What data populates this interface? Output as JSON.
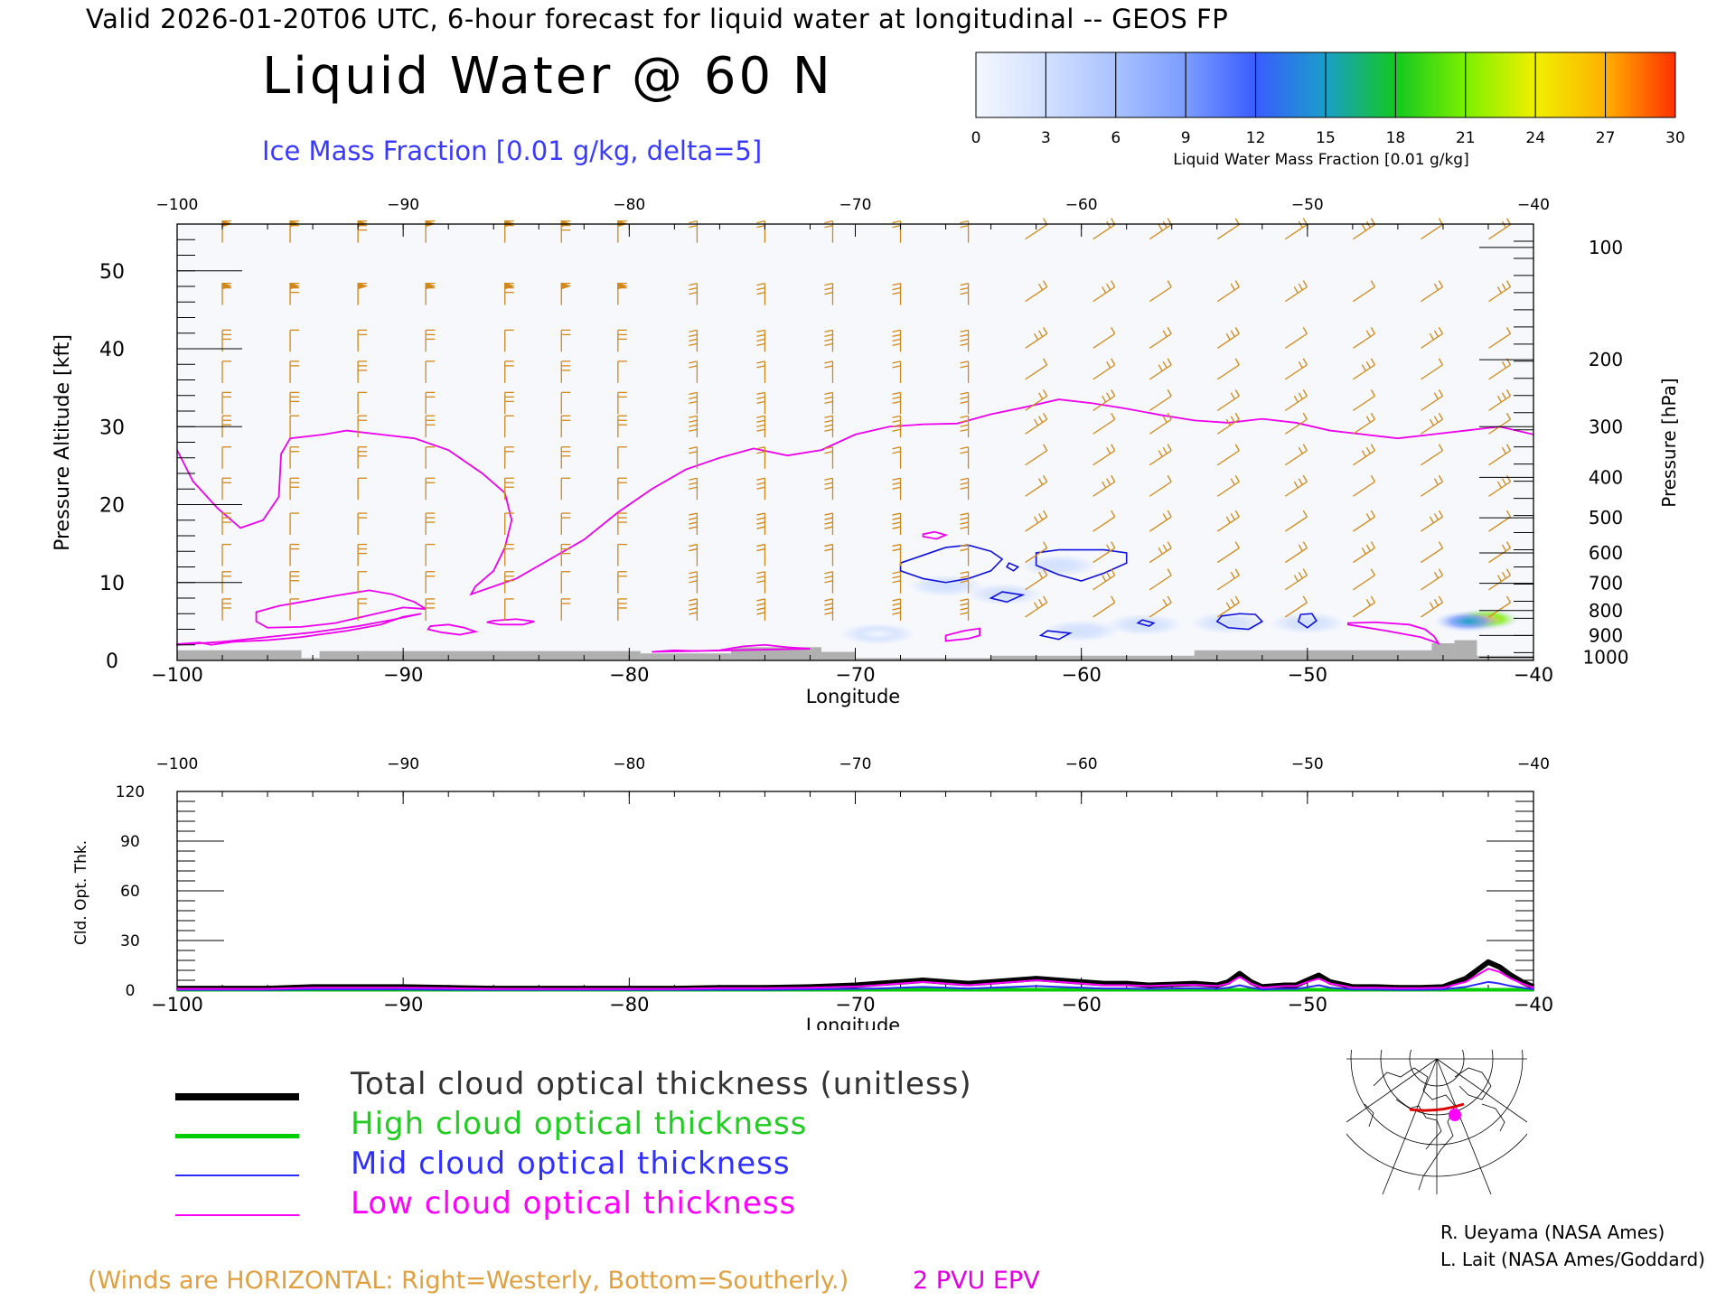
{
  "header": {
    "valid_line": "Valid 2026-01-20T06 UTC, 6-hour forecast for liquid water at longitudinal -- GEOS FP",
    "title": "Liquid Water @ 60 N",
    "subtitle": "Ice Mass Fraction [0.01 g/kg, delta=5]"
  },
  "colorbar": {
    "ticks": [
      "0",
      "3",
      "6",
      "9",
      "12",
      "15",
      "18",
      "21",
      "24",
      "27",
      "30"
    ],
    "label": "Liquid Water Mass Fraction [0.01 g/kg]",
    "colors": [
      "#f4f7ff",
      "#d2e0ff",
      "#a9c2ff",
      "#7b9cff",
      "#3a5cff",
      "#1a9ec8",
      "#12c820",
      "#7cf000",
      "#f0f000",
      "#ffb000",
      "#ff3000"
    ]
  },
  "chart_data": [
    {
      "type": "heatmap",
      "title": "Liquid Water @ 60 N",
      "xlabel": "Longitude",
      "ylabel": "Pressure Altitude [kft]",
      "y2label": "Pressure [hPa]",
      "xlim": [
        -100,
        -40
      ],
      "ylim": [
        0,
        56
      ],
      "x_ticks": [
        "-100",
        "-90",
        "-80",
        "-70",
        "-60",
        "-50",
        "-40"
      ],
      "y_ticks": [
        "0",
        "10",
        "20",
        "30",
        "40",
        "50"
      ],
      "pressure_ticks": [
        "100",
        "200",
        "300",
        "400",
        "500",
        "600",
        "700",
        "800",
        "900",
        "1000"
      ],
      "pressure_tick_kft": [
        53,
        38.6,
        30,
        23.5,
        18.3,
        13.8,
        9.9,
        6.4,
        3.2,
        0.4
      ],
      "ice_contours": [
        {
          "x": [
            -68,
            -67,
            -66,
            -65,
            -64,
            -63.5,
            -64,
            -65,
            -66,
            -67,
            -68
          ],
          "y": [
            12.5,
            13.5,
            14.5,
            14.8,
            14,
            13,
            11.5,
            10.5,
            10,
            10.5,
            11.5
          ]
        },
        {
          "x": [
            -62,
            -61,
            -60,
            -59,
            -58,
            -58,
            -59,
            -60,
            -61,
            -62
          ],
          "y": [
            13.8,
            14.2,
            14.2,
            14.2,
            13.8,
            12.5,
            11.2,
            10.2,
            11,
            12.2
          ]
        },
        {
          "x": [
            -53.8,
            -53,
            -52.3,
            -52,
            -52.6,
            -53.5,
            -54
          ],
          "y": [
            5.7,
            6,
            5.9,
            5,
            4,
            4.2,
            5
          ]
        },
        {
          "x": [
            -50.3,
            -49.8,
            -49.6,
            -50,
            -50.4
          ],
          "y": [
            5.9,
            6,
            5.1,
            4.2,
            5
          ]
        },
        {
          "x": [
            -63.2,
            -62.8,
            -63,
            -63.3
          ],
          "y": [
            12.5,
            12,
            11.5,
            12
          ]
        },
        {
          "x": [
            -63.5,
            -62.6,
            -63.3,
            -64
          ],
          "y": [
            8.8,
            8.4,
            7.5,
            8
          ]
        },
        {
          "x": [
            -61.5,
            -60.5,
            -61,
            -61.8
          ],
          "y": [
            3.8,
            3.5,
            2.7,
            3.2
          ]
        },
        {
          "x": [
            -57.3,
            -56.8,
            -57,
            -57.5
          ],
          "y": [
            5.2,
            4.8,
            4.4,
            4.8
          ]
        }
      ],
      "epv_2pvu": [
        {
          "x": [
            -100,
            -99.3,
            -98.2,
            -97.2,
            -96.2,
            -95.5,
            -95.4,
            -95,
            -93.5,
            -92.5,
            -91,
            -89.5,
            -88,
            -86.5,
            -85.5,
            -85.2,
            -85.5,
            -86,
            -86.8,
            -87,
            -86.5,
            -85,
            -83.5,
            -82,
            -80.5,
            -79,
            -77.5,
            -76,
            -74.5,
            -73,
            -71.5,
            -70,
            -68.5,
            -67,
            -65.5,
            -64,
            -62.5,
            -61,
            -59.5,
            -58,
            -56.5,
            -55,
            -53.5,
            -52,
            -50.5,
            -49,
            -47.5,
            -46,
            -44.5,
            -43,
            -41.5,
            -40
          ],
          "y": [
            27,
            23,
            19.5,
            17,
            18,
            21,
            26.5,
            28.5,
            29,
            29.5,
            29,
            28.5,
            27,
            24,
            21.5,
            18,
            14.5,
            11.5,
            9.5,
            8.5,
            9,
            10.5,
            13,
            15.5,
            19,
            22,
            24.5,
            26,
            27.2,
            26.3,
            27,
            29,
            30,
            30.3,
            30.4,
            31.6,
            32.5,
            33.5,
            33,
            32.3,
            31.5,
            30.8,
            30.5,
            31,
            30.5,
            29.5,
            29,
            28.5,
            29,
            29.5,
            30,
            29
          ]
        },
        {
          "x": [
            -96.5,
            -95.5,
            -94.5,
            -93,
            -91.5,
            -90.5,
            -89.5,
            -89,
            -90,
            -91.5,
            -93,
            -94.5,
            -96,
            -96.5
          ],
          "y": [
            6.2,
            7,
            7.5,
            8.3,
            9,
            8.5,
            7.5,
            6.6,
            6.8,
            5.8,
            4.8,
            4.3,
            4.2,
            5
          ]
        },
        {
          "x": [
            -100,
            -99,
            -98.5,
            -97.5,
            -96,
            -94.5,
            -92.5,
            -91,
            -90,
            -89.2,
            -90.5,
            -92,
            -94,
            -96,
            -98,
            -100
          ],
          "y": [
            2.1,
            2.3,
            2,
            2.4,
            2.6,
            3,
            3.8,
            4.6,
            5.6,
            6,
            5.2,
            4.4,
            3.6,
            3,
            2.4,
            2
          ]
        },
        {
          "x": [
            -88.8,
            -88,
            -87.3,
            -86.8,
            -87.5,
            -88.3,
            -88.9
          ],
          "y": [
            4.4,
            4.6,
            4.2,
            3.7,
            3.3,
            3.6,
            4
          ]
        },
        {
          "x": [
            -86,
            -85,
            -84.2,
            -84.7,
            -85.7,
            -86.3
          ],
          "y": [
            5.1,
            5.3,
            5,
            4.6,
            4.6,
            4.9
          ]
        },
        {
          "x": [
            -79,
            -78,
            -77,
            -76,
            -75,
            -74,
            -73,
            -72
          ],
          "y": [
            1.1,
            1.3,
            1.2,
            1.3,
            1.8,
            2,
            1.7,
            1.5
          ]
        },
        {
          "x": [
            -66,
            -65,
            -64.5,
            -64.5,
            -65.2,
            -66
          ],
          "y": [
            2.5,
            2.8,
            3.2,
            4.1,
            3.8,
            3.2
          ]
        },
        {
          "x": [
            -67,
            -66.5,
            -66,
            -66.4,
            -67
          ],
          "y": [
            16.2,
            16.5,
            16.1,
            15.6,
            15.9
          ]
        },
        {
          "x": [
            -48.2,
            -47,
            -45.5,
            -44.8,
            -44.4,
            -44.2,
            -45,
            -46.5,
            -48.2
          ],
          "y": [
            4.8,
            4.9,
            4.6,
            4,
            3.1,
            2.2,
            3,
            3.8,
            4.6
          ]
        }
      ],
      "liquid_blobs": [
        {
          "lon": -42.1,
          "kft": 5.3,
          "value": 28
        },
        {
          "lon": -42.9,
          "kft": 5.0,
          "value": 15
        },
        {
          "lon": -53.5,
          "kft": 4.8,
          "value": 3
        },
        {
          "lon": -57.2,
          "kft": 4.6,
          "value": 2
        },
        {
          "lon": -50,
          "kft": 4.8,
          "value": 2
        },
        {
          "lon": -60,
          "kft": 3.8,
          "value": 2
        },
        {
          "lon": -66,
          "kft": 9.6,
          "value": 2
        },
        {
          "lon": -63.4,
          "kft": 8.5,
          "value": 2
        },
        {
          "lon": -61,
          "kft": 12.2,
          "value": 2
        },
        {
          "lon": -69,
          "kft": 3.4,
          "value": 1
        }
      ],
      "terrain": [
        {
          "x0": -100,
          "x1": -94.5,
          "kft": 1.3
        },
        {
          "x0": -94.5,
          "x1": -93.7,
          "kft": 0.3
        },
        {
          "x0": -93.7,
          "x1": -79.5,
          "kft": 1.2
        },
        {
          "x0": -79.5,
          "x1": -75.5,
          "kft": 0.9
        },
        {
          "x0": -75.5,
          "x1": -71.5,
          "kft": 1.7
        },
        {
          "x0": -71.5,
          "x1": -70,
          "kft": 1.1
        },
        {
          "x0": -70,
          "x1": -64,
          "kft": 0.3
        },
        {
          "x0": -64,
          "x1": -55,
          "kft": 0.6
        },
        {
          "x0": -55,
          "x1": -44.5,
          "kft": 1.3
        },
        {
          "x0": -44.5,
          "x1": -43.5,
          "kft": 2.2
        },
        {
          "x0": -43.5,
          "x1": -42.5,
          "kft": 2.6
        },
        {
          "x0": -42.5,
          "x1": -40,
          "kft": 0.6
        }
      ],
      "wind_columns_lon": [
        -98,
        -95,
        -92,
        -89,
        -85.5,
        -83,
        -80.5,
        -77,
        -74,
        -71,
        -68,
        -65,
        -62,
        -59,
        -56.5,
        -53.5,
        -50.5,
        -47.5,
        -44.5,
        -41.5
      ],
      "wind_levels_kft": [
        55,
        47,
        41,
        37,
        33,
        30,
        26,
        22,
        17.5,
        13.5,
        10,
        6.5
      ]
    },
    {
      "type": "line",
      "xlabel": "Longitude",
      "ylabel": "Cld. Opt. Thk.",
      "xlim": [
        -100,
        -40
      ],
      "ylim": [
        0,
        120
      ],
      "x_ticks": [
        "-100",
        "-90",
        "-80",
        "-70",
        "-60",
        "-50",
        "-40"
      ],
      "y_ticks": [
        "0",
        "30",
        "60",
        "90",
        "120"
      ],
      "x": [
        -100,
        -96,
        -94,
        -92,
        -90,
        -88,
        -86,
        -84,
        -82,
        -80,
        -78,
        -76,
        -74,
        -72,
        -70,
        -69,
        -68,
        -67,
        -66,
        -65,
        -64,
        -63,
        -62,
        -61,
        -60,
        -59,
        -58,
        -57,
        -56,
        -55,
        -54,
        -53.5,
        -53,
        -52.5,
        -52,
        -51,
        -50.5,
        -50,
        -49.5,
        -49,
        -48,
        -47,
        -46,
        -45,
        -44,
        -43,
        -42.5,
        -42,
        -41.5,
        -41,
        -40.5,
        -40
      ],
      "series": [
        {
          "name": "Total cloud optical thickness (unitless)",
          "color": "#000000",
          "values": [
            1,
            1,
            2,
            2,
            2,
            1.5,
            1,
            1,
            1,
            1,
            1,
            1.5,
            1.5,
            2,
            3,
            4,
            5,
            6,
            5,
            4,
            5,
            6,
            7,
            6,
            5,
            4,
            4,
            3,
            3.5,
            4,
            3,
            5,
            10,
            5,
            2,
            3,
            3,
            6,
            9,
            5,
            2,
            2,
            1.5,
            1.5,
            2,
            7,
            12,
            17,
            14,
            9,
            5,
            2
          ]
        },
        {
          "name": "High cloud optical thickness",
          "color": "#00cc00",
          "values": [
            0.3,
            0.3,
            0.3,
            0.3,
            0.3,
            0.3,
            0.3,
            0.3,
            0.3,
            0.3,
            0.3,
            0.3,
            0.3,
            0.3,
            0.3,
            0.3,
            0.3,
            0.3,
            0.3,
            0.3,
            0.3,
            0.3,
            0.3,
            0.3,
            0.3,
            0.3,
            0.3,
            0.3,
            0.3,
            0.3,
            0.3,
            0.3,
            0.3,
            0.3,
            0.3,
            0.3,
            0.3,
            0.3,
            0.3,
            0.3,
            0.3,
            0.3,
            0.3,
            0.3,
            0.3,
            0.3,
            0.3,
            0.3,
            0.3,
            0.3,
            0.3,
            0.3
          ]
        },
        {
          "name": "Mid cloud optical thickness",
          "color": "#2a2aff",
          "values": [
            0.2,
            0.2,
            0.5,
            0.5,
            0.5,
            0.3,
            0.2,
            0.2,
            0.2,
            0.2,
            0.2,
            0.3,
            0.3,
            0.5,
            0.8,
            1,
            1.5,
            2,
            1.5,
            1,
            1.5,
            2,
            2.5,
            2,
            1.5,
            1,
            1,
            0.8,
            1,
            1.2,
            0.8,
            1.5,
            3,
            1.5,
            0.5,
            0.8,
            0.8,
            1.8,
            3,
            1.5,
            0.5,
            0.4,
            0.3,
            0.3,
            0.5,
            2,
            3.5,
            5,
            4,
            2.5,
            1.5,
            0.5
          ]
        },
        {
          "name": "Low cloud optical thickness",
          "color": "#ff00ff",
          "values": [
            0.8,
            0.8,
            1.5,
            1.5,
            1.5,
            1.2,
            0.8,
            0.8,
            0.8,
            0.8,
            0.8,
            1.2,
            1.2,
            1.5,
            2.2,
            3,
            4,
            5,
            4,
            3,
            4,
            5,
            6,
            5,
            4,
            3,
            3,
            2.5,
            3,
            3.2,
            2.5,
            4,
            8,
            4,
            1.5,
            2.5,
            2.5,
            5,
            7,
            4,
            1.5,
            1.5,
            1.2,
            1.2,
            1.5,
            5,
            9,
            13,
            11,
            7,
            4,
            1.5
          ]
        }
      ]
    }
  ],
  "legend": {
    "total": "Total cloud optical thickness (unitless)",
    "high": "High cloud optical thickness",
    "mid": "Mid cloud optical thickness",
    "low": "Low cloud optical thickness"
  },
  "footer": {
    "winds_note": "(Winds are HORIZONTAL: Right=Westerly, Bottom=Southerly.)",
    "pvu_note": "2 PVU EPV",
    "credit_1": "R. Ueyama (NASA Ames)",
    "credit_2": "L. Lait (NASA Ames/Goddard)"
  },
  "colors": {
    "wind_barb": "#d08818",
    "epv": "#ee00ee",
    "ice_contour": "#1010dd",
    "terrain": "#b0b0b0",
    "plot_background": "#f6f8fc"
  },
  "inset_map": {
    "marker_color": "#ff00ff",
    "section_color": "#dd0000"
  }
}
